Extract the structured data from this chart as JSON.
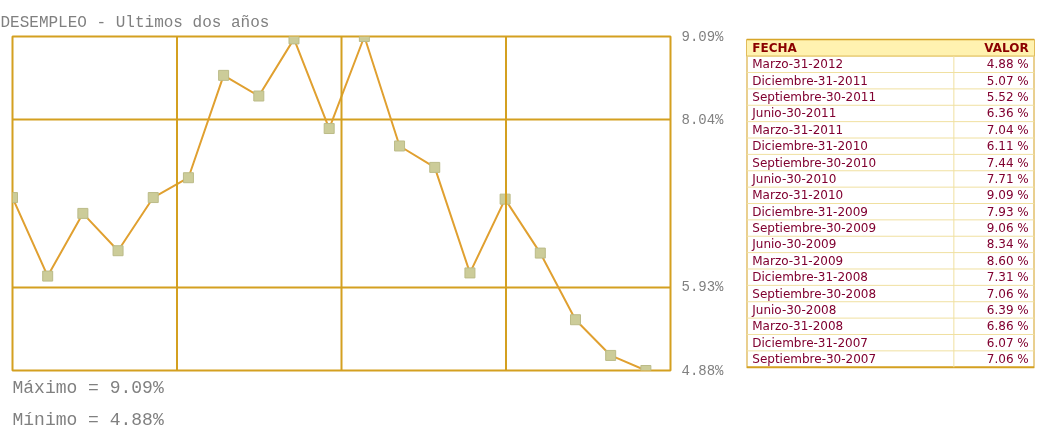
{
  "chart_data": [
    {
      "type": "line",
      "title": "DESEMPLEO - Ultimos dos años",
      "categories": [
        null,
        null,
        null,
        null,
        null,
        null,
        null,
        null,
        null,
        null,
        null,
        null,
        null,
        null,
        null,
        null,
        null,
        null,
        null
      ],
      "series": [
        {
          "color": "#e0a030",
          "values": [
            7.06,
            6.07,
            6.86,
            6.39,
            7.06,
            7.31,
            8.6,
            8.34,
            9.06,
            7.93,
            9.09,
            7.71,
            7.44,
            6.11,
            7.04,
            6.36,
            5.52,
            5.07,
            4.88
          ]
        }
      ],
      "ylim": [
        4.88,
        9.09
      ],
      "yticks": [
        {
          "value": 4.88,
          "label": "4.88%"
        },
        {
          "value": 5.93,
          "label": "5.93%"
        },
        {
          "value": 8.04,
          "label": "8.04%"
        },
        {
          "value": 9.09,
          "label": "9.09%"
        }
      ],
      "tick_labels": "y",
      "grid": true,
      "marker": "square",
      "line_style": "solid",
      "annotations": [
        "Máximo = 9.09%",
        "Mínimo = 4.88%"
      ]
    },
    {
      "type": "other",
      "categories": [
        "FECHA",
        "Marzo-31-2012",
        "Diciembre-31-2011",
        "Septiembre-30-2011",
        "Junio-30-2011",
        "Marzo-31-2011",
        "Diciembre-31-2010",
        "Septiembre-30-2010",
        "Junio-30-2010",
        "Marzo-31-2010",
        "Diciembre-31-2009",
        "Septiembre-30-2009",
        "Junio-30-2009",
        "Marzo-31-2009",
        "Diciembre-31-2008",
        "Septiembre-30-2008",
        "Junio-30-2008",
        "Marzo-31-2008",
        "Diciembre-31-2007",
        "Septiembre-30-2007"
      ],
      "value_labels": [
        "VALOR",
        "4.88 %",
        "5.07 %",
        "5.52 %",
        "6.36 %",
        "7.04 %",
        "6.11 %",
        "7.44 %",
        "7.71 %",
        "9.09 %",
        "7.93 %",
        "9.06 %",
        "8.34 %",
        "8.60 %",
        "7.31 %",
        "7.06 %",
        "6.39 %",
        "6.86 %",
        "6.07 %",
        "7.06 %"
      ]
    }
  ]
}
